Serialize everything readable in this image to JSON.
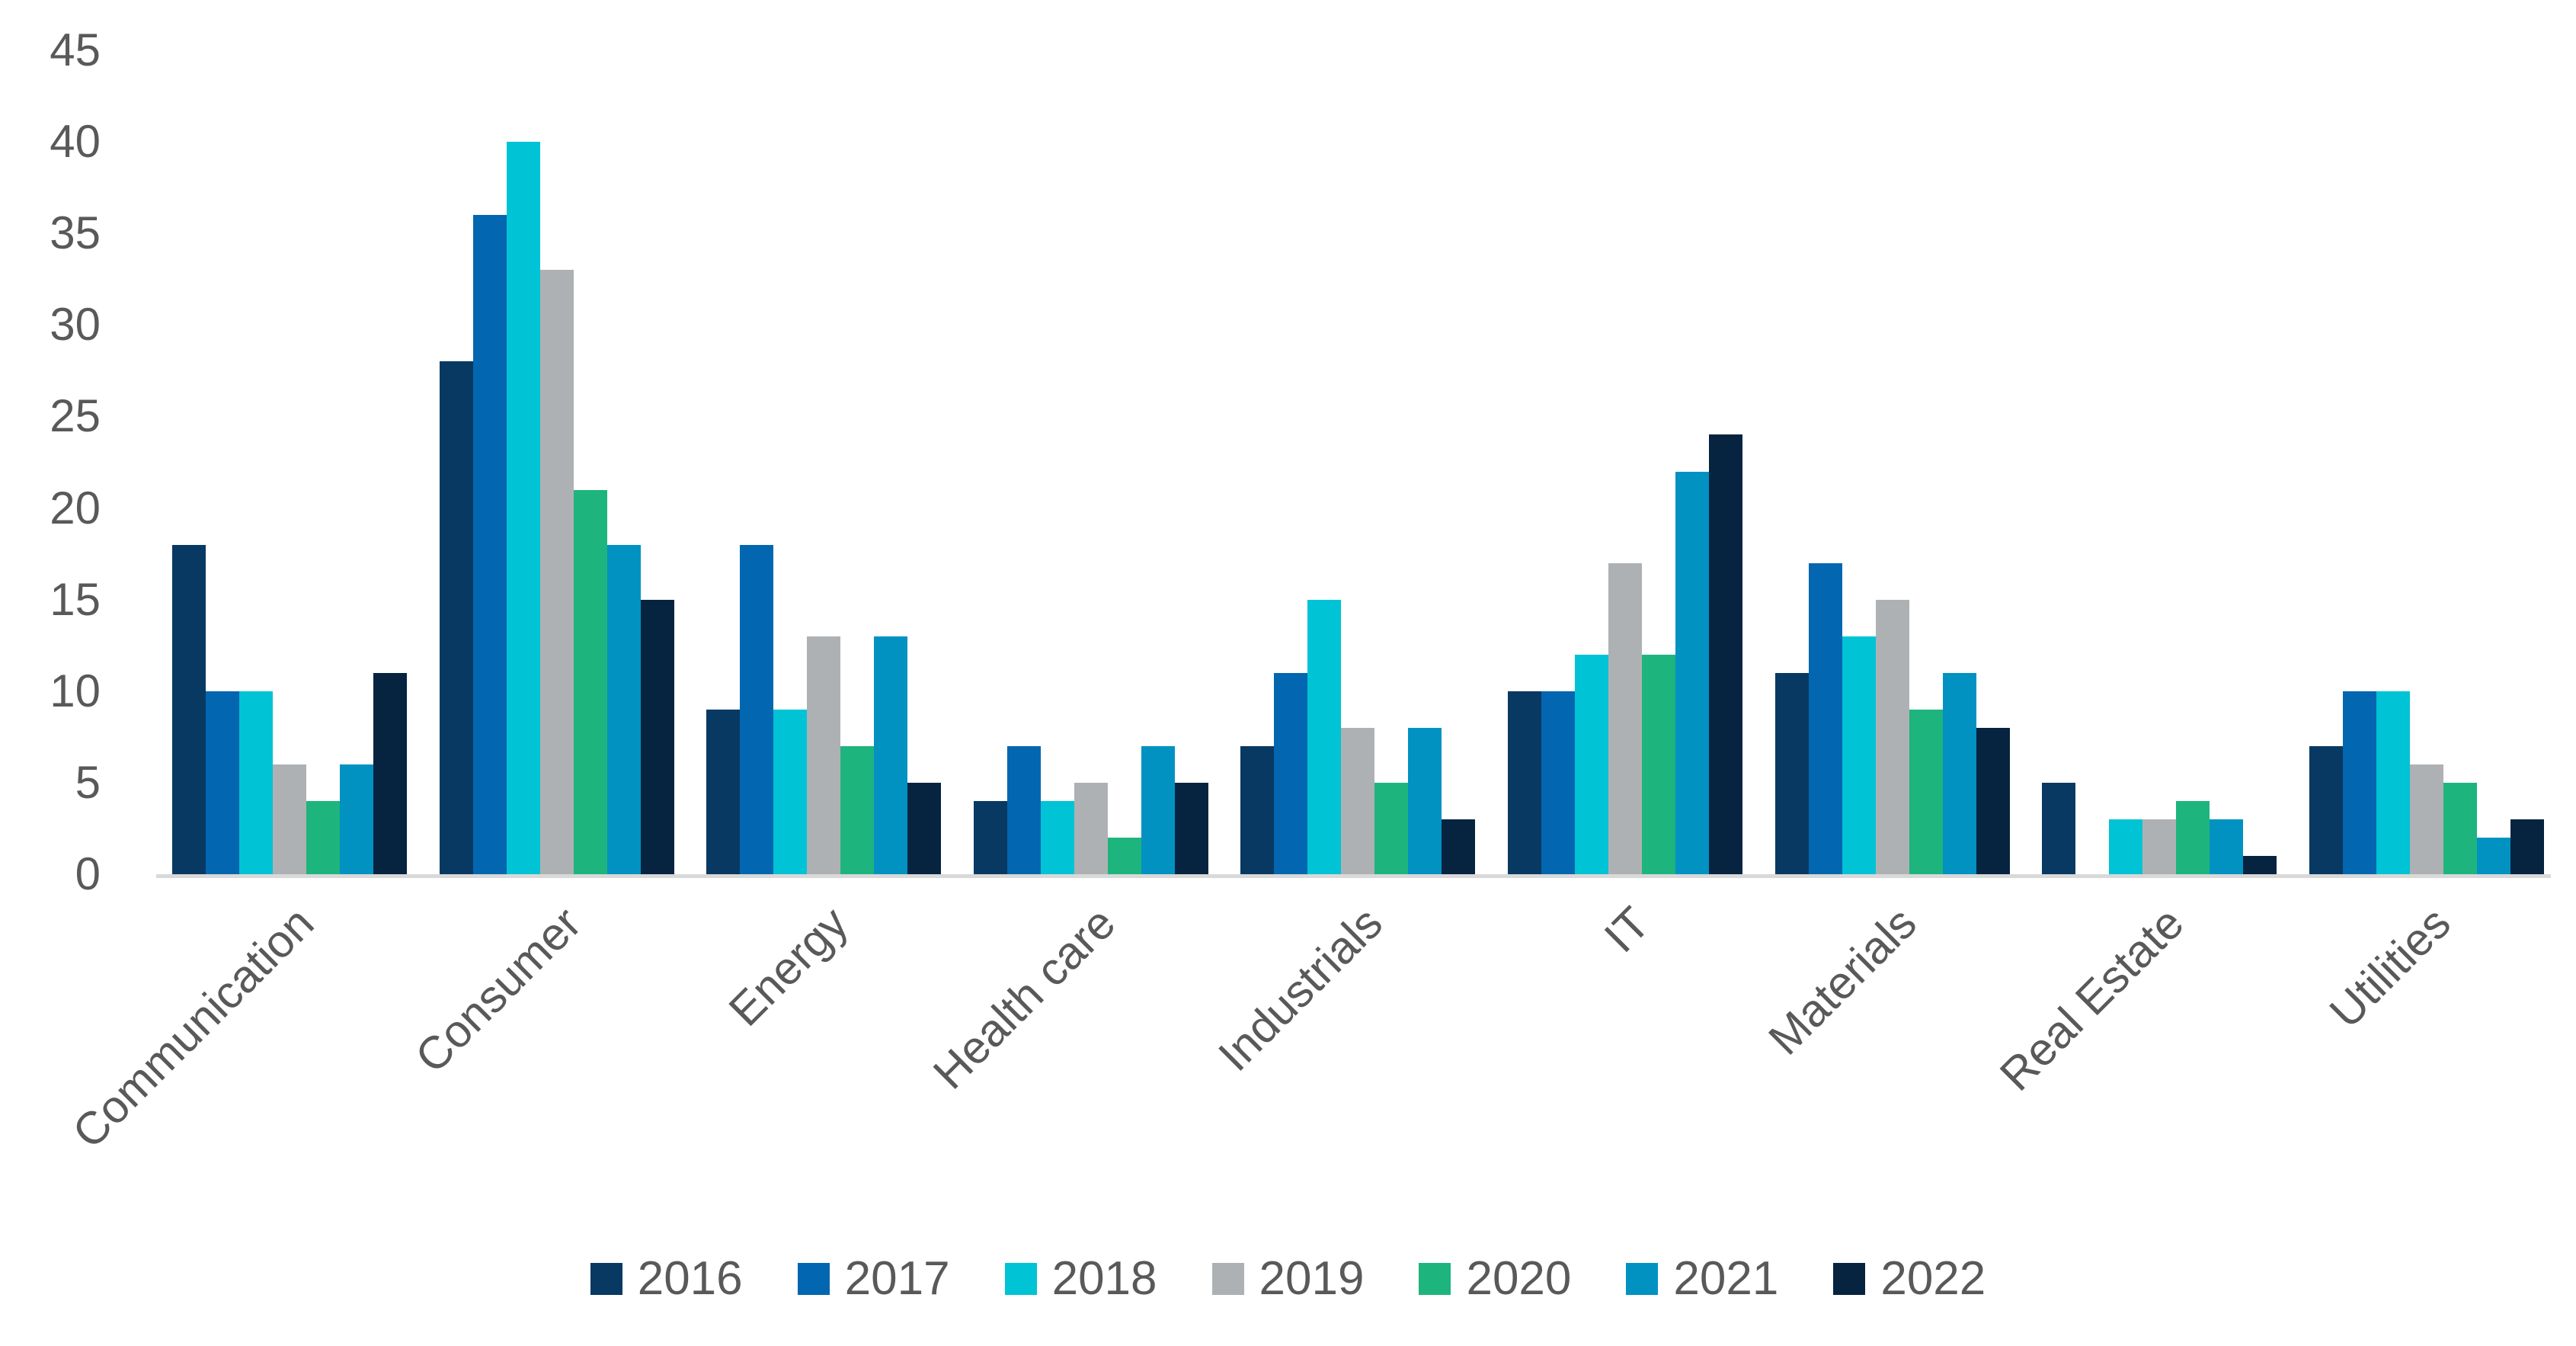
{
  "chart_data": {
    "type": "bar",
    "title": "",
    "xlabel": "",
    "ylabel": "",
    "categories": [
      "Communication",
      "Consumer",
      "Energy",
      "Health care",
      "Industrials",
      "IT",
      "Materials",
      "Real Estate",
      "Utilities"
    ],
    "series": [
      {
        "name": "2016",
        "color": "#073962",
        "values": [
          18,
          28,
          9,
          4,
          7,
          10,
          11,
          5,
          7
        ]
      },
      {
        "name": "2017",
        "color": "#0366B0",
        "values": [
          10,
          36,
          18,
          7,
          11,
          10,
          17,
          0,
          10
        ]
      },
      {
        "name": "2018",
        "color": "#00C3D5",
        "values": [
          10,
          40,
          9,
          4,
          15,
          12,
          13,
          3,
          10
        ]
      },
      {
        "name": "2019",
        "color": "#AEB1B3",
        "values": [
          6,
          33,
          13,
          5,
          8,
          17,
          15,
          3,
          6
        ]
      },
      {
        "name": "2020",
        "color": "#1EB47E",
        "values": [
          4,
          21,
          7,
          2,
          5,
          12,
          9,
          4,
          5
        ]
      },
      {
        "name": "2021",
        "color": "#0192C2",
        "values": [
          6,
          18,
          13,
          7,
          8,
          22,
          11,
          3,
          2
        ]
      },
      {
        "name": "2022",
        "color": "#062440",
        "values": [
          11,
          15,
          5,
          5,
          3,
          24,
          8,
          1,
          3
        ]
      }
    ],
    "ylim": [
      0,
      45
    ],
    "yticks": [
      0,
      5,
      10,
      15,
      20,
      25,
      30,
      35,
      40,
      45
    ],
    "grid": false,
    "legend_position": "bottom",
    "axis_color": "#d9d9d9",
    "label_color": "#595959"
  }
}
